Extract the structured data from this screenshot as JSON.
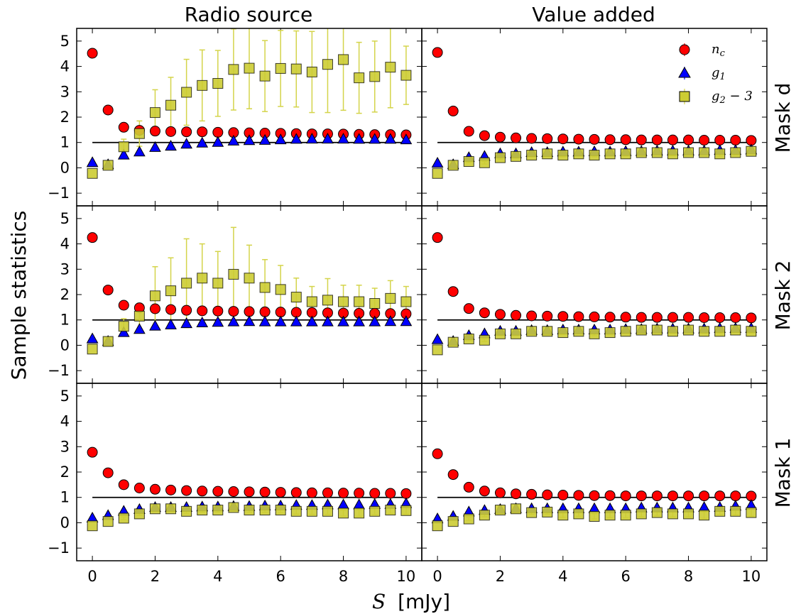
{
  "figure": {
    "column_titles": [
      "Radio source",
      "Value added"
    ],
    "row_titles": [
      "Mask d",
      "Mask 2",
      "Mask 1"
    ],
    "ylabel": "Sample statistics",
    "xlabel_symbol": "S",
    "xlabel_unit": "[mJy]",
    "legend": [
      {
        "key": "nc",
        "label_base": "n",
        "label_sub": "c",
        "label_suffix": "",
        "marker": "circle",
        "color": "#ff0000"
      },
      {
        "key": "g1",
        "label_base": "g",
        "label_sub": "1",
        "label_suffix": "",
        "marker": "triangle",
        "color": "#0000ff"
      },
      {
        "key": "g2",
        "label_base": "g",
        "label_sub": "2",
        "label_suffix": " − 3",
        "marker": "square",
        "color": "#cccc33"
      }
    ],
    "colors": {
      "nc": "#ff0000",
      "g1": "#0000ff",
      "g2": "#cccc33",
      "g2_error": "#d4d44a",
      "reference_line": "#000000"
    }
  },
  "chart_data": {
    "type": "scatter",
    "x": [
      0,
      0.5,
      1,
      1.5,
      2,
      2.5,
      3,
      3.5,
      4,
      4.5,
      5,
      5.5,
      6,
      6.5,
      7,
      7.5,
      8,
      8.5,
      9,
      9.5,
      10
    ],
    "xlim": [
      -0.5,
      10.5
    ],
    "ylim": [
      -1.5,
      5.5
    ],
    "xticks": [
      0,
      2,
      4,
      6,
      8,
      10
    ],
    "yticks": [
      -1,
      0,
      1,
      2,
      3,
      4,
      5
    ],
    "reference_line_y": 1,
    "grid": false,
    "legend_position": "top-right of Value added / Mask d panel",
    "panels": [
      {
        "row": 0,
        "col": 0,
        "column": "Radio source",
        "row_label": "Mask d",
        "nc": [
          4.52,
          2.28,
          1.6,
          1.48,
          1.45,
          1.43,
          1.42,
          1.42,
          1.4,
          1.39,
          1.38,
          1.37,
          1.36,
          1.35,
          1.34,
          1.34,
          1.33,
          1.32,
          1.31,
          1.31,
          1.3
        ],
        "g1": [
          0.2,
          0.12,
          0.5,
          0.62,
          0.8,
          0.85,
          0.93,
          0.97,
          1.0,
          1.05,
          1.07,
          1.08,
          1.1,
          1.12,
          1.13,
          1.13,
          1.13,
          1.12,
          1.12,
          1.12,
          1.1
        ],
        "g2": [
          -0.22,
          0.1,
          0.83,
          1.35,
          2.18,
          2.47,
          2.98,
          3.25,
          3.33,
          3.88,
          3.93,
          3.62,
          3.92,
          3.9,
          3.78,
          4.08,
          4.27,
          3.55,
          3.6,
          3.97,
          3.65
        ],
        "g2_err": [
          0,
          0,
          0.3,
          0.5,
          0.9,
          1.1,
          1.3,
          1.4,
          1.3,
          1.6,
          1.6,
          1.4,
          1.5,
          1.5,
          1.6,
          1.9,
          2.0,
          1.4,
          1.4,
          1.6,
          1.15
        ]
      },
      {
        "row": 0,
        "col": 1,
        "column": "Value added",
        "row_label": "Mask d",
        "nc": [
          4.55,
          2.24,
          1.44,
          1.27,
          1.21,
          1.18,
          1.16,
          1.15,
          1.14,
          1.13,
          1.12,
          1.11,
          1.11,
          1.1,
          1.1,
          1.1,
          1.1,
          1.09,
          1.09,
          1.09,
          1.08
        ],
        "g1": [
          0.18,
          0.12,
          0.4,
          0.45,
          0.55,
          0.55,
          0.6,
          0.6,
          0.62,
          0.62,
          0.63,
          0.62,
          0.64,
          0.64,
          0.66,
          0.66,
          0.66,
          0.66,
          0.68,
          0.68,
          0.7
        ],
        "g2": [
          -0.22,
          0.1,
          0.25,
          0.2,
          0.4,
          0.45,
          0.5,
          0.55,
          0.5,
          0.55,
          0.5,
          0.55,
          0.55,
          0.6,
          0.6,
          0.55,
          0.6,
          0.6,
          0.55,
          0.6,
          0.65
        ],
        "g2_err": [
          0,
          0,
          0.05,
          0.05,
          0.06,
          0.06,
          0.06,
          0.07,
          0.07,
          0.07,
          0.07,
          0.07,
          0.08,
          0.08,
          0.08,
          0.08,
          0.08,
          0.08,
          0.09,
          0.09,
          0.09
        ]
      },
      {
        "row": 1,
        "col": 0,
        "column": "Radio source",
        "row_label": "Mask 2",
        "nc": [
          4.25,
          2.18,
          1.58,
          1.48,
          1.44,
          1.41,
          1.38,
          1.36,
          1.35,
          1.34,
          1.33,
          1.32,
          1.31,
          1.3,
          1.29,
          1.28,
          1.27,
          1.26,
          1.26,
          1.25,
          1.24
        ],
        "g1": [
          0.25,
          0.15,
          0.5,
          0.62,
          0.75,
          0.8,
          0.85,
          0.88,
          0.9,
          0.92,
          0.93,
          0.92,
          0.92,
          0.92,
          0.92,
          0.92,
          0.92,
          0.92,
          0.92,
          0.93,
          0.93
        ],
        "g2": [
          -0.15,
          0.15,
          0.75,
          1.15,
          1.95,
          2.15,
          2.45,
          2.65,
          2.45,
          2.8,
          2.65,
          2.28,
          2.2,
          1.9,
          1.72,
          1.78,
          1.72,
          1.72,
          1.65,
          1.85,
          1.72
        ],
        "g2_err": [
          0,
          0,
          0.3,
          0.5,
          1.15,
          1.3,
          1.75,
          1.35,
          1.25,
          1.85,
          1.3,
          1.1,
          0.95,
          0.75,
          0.6,
          0.85,
          0.65,
          0.65,
          0.6,
          0.7,
          0.6
        ]
      },
      {
        "row": 1,
        "col": 1,
        "column": "Value added",
        "row_label": "Mask 2",
        "nc": [
          4.25,
          2.12,
          1.45,
          1.28,
          1.22,
          1.18,
          1.16,
          1.15,
          1.14,
          1.13,
          1.12,
          1.11,
          1.11,
          1.1,
          1.1,
          1.1,
          1.1,
          1.09,
          1.09,
          1.09,
          1.08
        ],
        "g1": [
          0.22,
          0.15,
          0.38,
          0.45,
          0.55,
          0.55,
          0.58,
          0.58,
          0.6,
          0.6,
          0.6,
          0.6,
          0.62,
          0.62,
          0.64,
          0.64,
          0.64,
          0.64,
          0.66,
          0.66,
          0.66
        ],
        "g2": [
          -0.18,
          0.12,
          0.25,
          0.2,
          0.45,
          0.45,
          0.55,
          0.55,
          0.5,
          0.55,
          0.45,
          0.5,
          0.55,
          0.6,
          0.6,
          0.55,
          0.6,
          0.55,
          0.55,
          0.6,
          0.55
        ],
        "g2_err": [
          0,
          0,
          0.05,
          0.05,
          0.06,
          0.06,
          0.06,
          0.07,
          0.07,
          0.07,
          0.07,
          0.07,
          0.08,
          0.08,
          0.08,
          0.08,
          0.08,
          0.08,
          0.09,
          0.09,
          0.09
        ]
      },
      {
        "row": 2,
        "col": 0,
        "column": "Radio source",
        "row_label": "Mask 1",
        "nc": [
          2.78,
          1.97,
          1.5,
          1.37,
          1.32,
          1.29,
          1.27,
          1.25,
          1.24,
          1.23,
          1.22,
          1.21,
          1.2,
          1.19,
          1.18,
          1.18,
          1.17,
          1.17,
          1.16,
          1.16,
          1.15
        ],
        "g1": [
          0.18,
          0.28,
          0.45,
          0.52,
          0.6,
          0.6,
          0.6,
          0.62,
          0.62,
          0.64,
          0.64,
          0.66,
          0.66,
          0.68,
          0.68,
          0.7,
          0.7,
          0.7,
          0.72,
          0.72,
          0.75
        ],
        "g2": [
          -0.12,
          0.05,
          0.18,
          0.35,
          0.55,
          0.55,
          0.45,
          0.5,
          0.5,
          0.6,
          0.5,
          0.5,
          0.5,
          0.45,
          0.45,
          0.45,
          0.38,
          0.38,
          0.45,
          0.5,
          0.48
        ],
        "g2_err": [
          0,
          0,
          0.05,
          0.06,
          0.07,
          0.08,
          0.08,
          0.09,
          0.09,
          0.1,
          0.1,
          0.1,
          0.11,
          0.11,
          0.12,
          0.12,
          0.12,
          0.13,
          0.13,
          0.14,
          0.14
        ]
      },
      {
        "row": 2,
        "col": 1,
        "column": "Value added",
        "row_label": "Mask 1",
        "nc": [
          2.72,
          1.9,
          1.4,
          1.25,
          1.18,
          1.14,
          1.12,
          1.1,
          1.09,
          1.08,
          1.07,
          1.07,
          1.06,
          1.06,
          1.06,
          1.06,
          1.06,
          1.06,
          1.06,
          1.06,
          1.05
        ],
        "g1": [
          0.15,
          0.25,
          0.42,
          0.48,
          0.52,
          0.55,
          0.55,
          0.55,
          0.55,
          0.55,
          0.55,
          0.55,
          0.55,
          0.58,
          0.58,
          0.58,
          0.58,
          0.6,
          0.6,
          0.65,
          0.68
        ],
        "g2": [
          -0.12,
          0.05,
          0.15,
          0.3,
          0.5,
          0.55,
          0.4,
          0.42,
          0.3,
          0.35,
          0.25,
          0.3,
          0.3,
          0.35,
          0.4,
          0.35,
          0.35,
          0.3,
          0.45,
          0.45,
          0.4
        ],
        "g2_err": [
          0,
          0,
          0.05,
          0.06,
          0.07,
          0.08,
          0.08,
          0.09,
          0.09,
          0.1,
          0.1,
          0.1,
          0.11,
          0.11,
          0.12,
          0.12,
          0.12,
          0.13,
          0.13,
          0.14,
          0.14
        ]
      }
    ]
  }
}
